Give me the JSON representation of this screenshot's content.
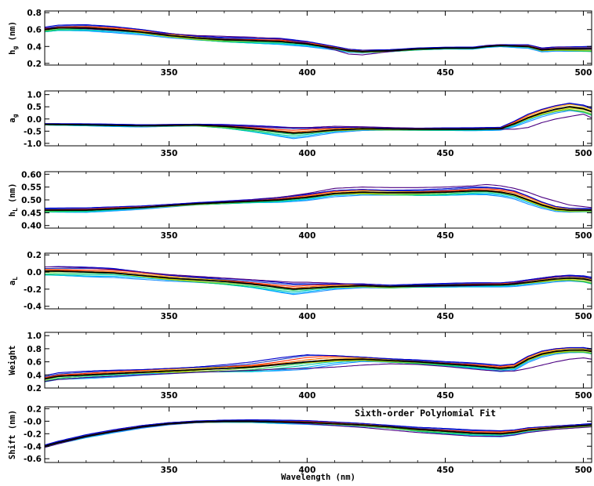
{
  "chart_data": [
    {
      "type": "line",
      "ylabel": "h_g (nm)",
      "ylabel_main": "h",
      "ylabel_sub": "g",
      "ylabel_suffix": " (nm)",
      "xlim": [
        305,
        503
      ],
      "ylim": [
        0.18,
        0.82
      ],
      "xticks": [
        350,
        400,
        450,
        500
      ],
      "yticks": [
        0.2,
        0.4,
        0.6,
        0.8
      ],
      "ytick_labels": [
        "0.2",
        "0.4",
        "0.6",
        "0.8"
      ],
      "mean": {
        "x": [
          305,
          310,
          320,
          330,
          340,
          350,
          360,
          370,
          380,
          390,
          400,
          410,
          415,
          420,
          430,
          440,
          450,
          460,
          465,
          470,
          480,
          485,
          490,
          500,
          503
        ],
        "y": [
          0.6,
          0.62,
          0.62,
          0.6,
          0.57,
          0.53,
          0.5,
          0.48,
          0.47,
          0.46,
          0.43,
          0.38,
          0.35,
          0.34,
          0.35,
          0.37,
          0.38,
          0.38,
          0.4,
          0.41,
          0.4,
          0.36,
          0.37,
          0.37,
          0.37
        ]
      },
      "outlier": {
        "x": [
          305,
          310,
          320,
          330,
          340,
          350,
          360,
          370,
          380,
          390,
          400,
          410,
          415,
          420,
          430,
          440,
          450,
          460,
          465,
          470,
          480,
          485,
          490,
          500,
          503
        ],
        "y": [
          0.62,
          0.62,
          0.61,
          0.59,
          0.57,
          0.55,
          0.53,
          0.52,
          0.51,
          0.49,
          0.44,
          0.36,
          0.31,
          0.3,
          0.34,
          0.37,
          0.38,
          0.38,
          0.41,
          0.42,
          0.4,
          0.37,
          0.38,
          0.38,
          0.38
        ]
      },
      "spread": {
        "x": [
          305,
          330,
          360,
          390,
          410,
          420,
          450,
          470,
          490,
          503
        ],
        "y": [
          0.03,
          0.03,
          0.03,
          0.03,
          0.02,
          0.02,
          0.01,
          0.01,
          0.03,
          0.04
        ]
      },
      "annotation": ""
    },
    {
      "type": "line",
      "ylabel": "a_g",
      "ylabel_main": "a",
      "ylabel_sub": "g",
      "ylabel_suffix": "",
      "xlim": [
        305,
        503
      ],
      "ylim": [
        -1.1,
        1.15
      ],
      "xticks": [
        350,
        400,
        450,
        500
      ],
      "yticks": [
        -1.0,
        -0.5,
        0.0,
        0.5,
        1.0
      ],
      "ytick_labels": [
        "-1.0",
        "-0.5",
        "0.0",
        "0.5",
        "1.0"
      ],
      "mean": {
        "x": [
          305,
          320,
          340,
          360,
          370,
          380,
          390,
          395,
          400,
          410,
          420,
          440,
          460,
          470,
          475,
          480,
          485,
          490,
          495,
          500,
          503
        ],
        "y": [
          -0.22,
          -0.24,
          -0.28,
          -0.25,
          -0.3,
          -0.4,
          -0.52,
          -0.58,
          -0.55,
          -0.45,
          -0.4,
          -0.42,
          -0.42,
          -0.4,
          -0.2,
          0.05,
          0.25,
          0.4,
          0.5,
          0.42,
          0.3
        ]
      },
      "outlier": {
        "x": [
          305,
          320,
          340,
          360,
          370,
          380,
          390,
          400,
          410,
          420,
          440,
          460,
          470,
          475,
          480,
          485,
          490,
          495,
          500,
          503
        ],
        "y": [
          -0.22,
          -0.24,
          -0.27,
          -0.24,
          -0.26,
          -0.3,
          -0.35,
          -0.35,
          -0.3,
          -0.32,
          -0.38,
          -0.4,
          -0.42,
          -0.42,
          -0.35,
          -0.15,
          0.0,
          0.1,
          0.2,
          0.05
        ]
      },
      "spread": {
        "x": [
          305,
          360,
          380,
          395,
          410,
          440,
          470,
          480,
          495,
          503
        ],
        "y": [
          0.03,
          0.05,
          0.12,
          0.18,
          0.1,
          0.05,
          0.05,
          0.15,
          0.2,
          0.2
        ]
      },
      "annotation": ""
    },
    {
      "type": "line",
      "ylabel": "h_L (nm)",
      "ylabel_main": "h",
      "ylabel_sub": "L",
      "ylabel_suffix": " (nm)",
      "xlim": [
        305,
        503
      ],
      "ylim": [
        0.39,
        0.61
      ],
      "xticks": [
        350,
        400,
        450,
        500
      ],
      "yticks": [
        0.4,
        0.45,
        0.5,
        0.55,
        0.6
      ],
      "ytick_labels": [
        "0.40",
        "0.45",
        "0.50",
        "0.55",
        "0.60"
      ],
      "mean": {
        "x": [
          305,
          320,
          340,
          360,
          380,
          390,
          400,
          410,
          420,
          430,
          440,
          450,
          460,
          465,
          470,
          475,
          480,
          485,
          490,
          495,
          503
        ],
        "y": [
          0.46,
          0.46,
          0.47,
          0.485,
          0.495,
          0.5,
          0.51,
          0.525,
          0.53,
          0.528,
          0.528,
          0.53,
          0.535,
          0.535,
          0.53,
          0.52,
          0.5,
          0.48,
          0.465,
          0.46,
          0.46
        ]
      },
      "outlier": {
        "x": [
          305,
          320,
          340,
          360,
          380,
          390,
          400,
          410,
          420,
          430,
          440,
          450,
          460,
          465,
          470,
          475,
          480,
          485,
          490,
          495,
          503
        ],
        "y": [
          0.46,
          0.46,
          0.47,
          0.485,
          0.5,
          0.51,
          0.525,
          0.545,
          0.55,
          0.548,
          0.548,
          0.55,
          0.555,
          0.56,
          0.555,
          0.545,
          0.53,
          0.51,
          0.495,
          0.48,
          0.47
        ]
      },
      "spread": {
        "x": [
          305,
          340,
          380,
          400,
          420,
          450,
          465,
          480,
          495,
          503
        ],
        "y": [
          0.008,
          0.006,
          0.006,
          0.01,
          0.013,
          0.012,
          0.012,
          0.015,
          0.01,
          0.008
        ]
      },
      "annotation": ""
    },
    {
      "type": "line",
      "ylabel": "a_L",
      "ylabel_main": "a",
      "ylabel_sub": "L",
      "ylabel_suffix": "",
      "xlim": [
        305,
        503
      ],
      "ylim": [
        -0.43,
        0.22
      ],
      "xticks": [
        350,
        400,
        450,
        500
      ],
      "yticks": [
        -0.4,
        -0.2,
        0.0,
        0.2
      ],
      "ytick_labels": [
        "-0.4",
        "-0.2",
        "0.0",
        "0.2"
      ],
      "mean": {
        "x": [
          305,
          310,
          320,
          330,
          340,
          350,
          360,
          370,
          380,
          390,
          395,
          400,
          410,
          420,
          430,
          440,
          460,
          470,
          475,
          480,
          490,
          495,
          500,
          503
        ],
        "y": [
          0.01,
          0.01,
          0.0,
          -0.01,
          -0.04,
          -0.07,
          -0.09,
          -0.11,
          -0.14,
          -0.18,
          -0.2,
          -0.19,
          -0.17,
          -0.16,
          -0.17,
          -0.16,
          -0.15,
          -0.15,
          -0.14,
          -0.12,
          -0.08,
          -0.07,
          -0.08,
          -0.1
        ]
      },
      "outlier": {
        "x": [
          305,
          310,
          320,
          330,
          340,
          350,
          360,
          370,
          380,
          390,
          395,
          400,
          410,
          420,
          430,
          440,
          460,
          470,
          475,
          480,
          490,
          495,
          500,
          503
        ],
        "y": [
          0.06,
          0.06,
          0.05,
          0.03,
          0.0,
          -0.03,
          -0.05,
          -0.07,
          -0.09,
          -0.11,
          -0.12,
          -0.12,
          -0.13,
          -0.15,
          -0.17,
          -0.17,
          -0.16,
          -0.15,
          -0.13,
          -0.1,
          -0.06,
          -0.05,
          -0.06,
          -0.08
        ]
      },
      "spread": {
        "x": [
          305,
          340,
          380,
          395,
          410,
          440,
          470,
          490,
          503
        ],
        "y": [
          0.05,
          0.04,
          0.04,
          0.05,
          0.03,
          0.02,
          0.02,
          0.04,
          0.05
        ]
      },
      "annotation": ""
    },
    {
      "type": "line",
      "ylabel": "Weight",
      "ylabel_main": "Weight",
      "ylabel_sub": "",
      "ylabel_suffix": "",
      "xlim": [
        305,
        503
      ],
      "ylim": [
        0.2,
        1.05
      ],
      "xticks": [
        350,
        400,
        450,
        500
      ],
      "yticks": [
        0.2,
        0.4,
        0.6,
        0.8,
        1.0
      ],
      "ytick_labels": [
        "0.2",
        "0.4",
        "0.6",
        "0.8",
        "1.0"
      ],
      "mean": {
        "x": [
          305,
          310,
          320,
          340,
          360,
          380,
          390,
          400,
          410,
          420,
          430,
          440,
          450,
          460,
          465,
          470,
          475,
          480,
          485,
          490,
          495,
          500,
          503
        ],
        "y": [
          0.34,
          0.38,
          0.4,
          0.44,
          0.48,
          0.52,
          0.56,
          0.6,
          0.63,
          0.64,
          0.62,
          0.6,
          0.57,
          0.54,
          0.52,
          0.5,
          0.52,
          0.64,
          0.72,
          0.76,
          0.78,
          0.78,
          0.76
        ]
      },
      "outlier": {
        "x": [
          305,
          310,
          320,
          340,
          360,
          380,
          390,
          400,
          410,
          420,
          430,
          440,
          450,
          460,
          465,
          470,
          475,
          480,
          485,
          490,
          495,
          500,
          503
        ],
        "y": [
          0.3,
          0.33,
          0.36,
          0.4,
          0.44,
          0.47,
          0.49,
          0.5,
          0.52,
          0.55,
          0.57,
          0.56,
          0.53,
          0.49,
          0.47,
          0.46,
          0.46,
          0.5,
          0.55,
          0.6,
          0.64,
          0.66,
          0.64
        ]
      },
      "spread": {
        "x": [
          305,
          340,
          380,
          400,
          420,
          450,
          470,
          485,
          503
        ],
        "y": [
          0.05,
          0.04,
          0.07,
          0.09,
          0.04,
          0.03,
          0.04,
          0.05,
          0.05
        ]
      },
      "annotation": ""
    },
    {
      "type": "line",
      "ylabel": "Shift (nm)",
      "ylabel_main": "Shift (nm)",
      "ylabel_sub": "",
      "ylabel_suffix": "",
      "xlabel": "Wavelength (nm)",
      "xlim": [
        305,
        503
      ],
      "ylim": [
        -0.66,
        0.23
      ],
      "xticks": [
        350,
        400,
        450,
        500
      ],
      "yticks": [
        -0.6,
        -0.4,
        -0.2,
        0.0,
        0.2
      ],
      "ytick_labels": [
        "-0.6",
        "-0.4",
        "-0.2",
        "-0.0",
        "0.2"
      ],
      "mean": {
        "x": [
          305,
          310,
          320,
          330,
          340,
          350,
          360,
          370,
          380,
          390,
          400,
          410,
          420,
          430,
          440,
          450,
          460,
          470,
          475,
          480,
          490,
          500,
          503
        ],
        "y": [
          -0.4,
          -0.34,
          -0.24,
          -0.16,
          -0.09,
          -0.04,
          -0.01,
          0.0,
          0.0,
          -0.01,
          -0.02,
          -0.04,
          -0.06,
          -0.09,
          -0.13,
          -0.16,
          -0.19,
          -0.2,
          -0.18,
          -0.14,
          -0.1,
          -0.07,
          -0.06
        ]
      },
      "outlier": {
        "x": [
          305,
          310,
          320,
          330,
          340,
          350,
          360,
          370,
          380,
          390,
          400,
          410,
          420,
          430,
          440,
          450,
          460,
          470,
          475,
          480,
          490,
          500,
          503
        ],
        "y": [
          -0.42,
          -0.36,
          -0.25,
          -0.17,
          -0.1,
          -0.05,
          -0.02,
          -0.01,
          -0.01,
          -0.02,
          -0.04,
          -0.07,
          -0.1,
          -0.14,
          -0.18,
          -0.21,
          -0.24,
          -0.24,
          -0.22,
          -0.18,
          -0.13,
          -0.1,
          -0.09
        ]
      },
      "spread": {
        "x": [
          305,
          340,
          380,
          420,
          450,
          470,
          490,
          503
        ],
        "y": [
          0.02,
          0.02,
          0.02,
          0.03,
          0.04,
          0.04,
          0.03,
          0.03
        ]
      },
      "annotation": "Sixth-order Polynomial Fit"
    }
  ],
  "series_colors": [
    "#1e90ff",
    "#00bfff",
    "#00c8a0",
    "#22cc55",
    "#7ccd30",
    "#c8d400",
    "#ffd700",
    "#ffa500",
    "#ff6a00",
    "#ff2800",
    "#2040c0",
    "#0000cd"
  ],
  "mean_color": "#000000",
  "outlier_color": "#4b0082"
}
